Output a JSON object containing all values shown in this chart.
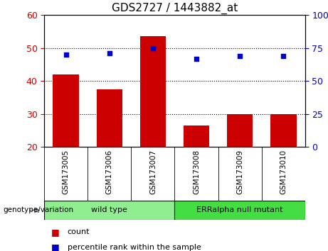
{
  "title": "GDS2727 / 1443882_at",
  "samples": [
    "GSM173005",
    "GSM173006",
    "GSM173007",
    "GSM173008",
    "GSM173009",
    "GSM173010"
  ],
  "counts": [
    42,
    37.5,
    53.5,
    26.5,
    30,
    30
  ],
  "percentile_ranks": [
    70,
    71,
    75,
    67,
    69,
    69
  ],
  "ylim_left": [
    20,
    60
  ],
  "ylim_right": [
    0,
    100
  ],
  "yticks_left": [
    20,
    30,
    40,
    50,
    60
  ],
  "yticks_right": [
    0,
    25,
    50,
    75,
    100
  ],
  "ytick_labels_right": [
    "0",
    "25",
    "50",
    "75",
    "100%"
  ],
  "bar_color": "#cc0000",
  "scatter_color": "#0000cc",
  "bar_bottom": 20,
  "wt_color": "#90ee90",
  "er_color": "#44dd44",
  "xlabel_area_color": "#cccccc",
  "genotype_label": "genotype/variation",
  "legend_count_label": "count",
  "legend_pct_label": "percentile rank within the sample",
  "dotted_yticks": [
    30,
    40,
    50
  ],
  "background_plot": "#ffffff",
  "tick_label_color_left": "#cc0000",
  "tick_label_color_right": "#0000cc"
}
